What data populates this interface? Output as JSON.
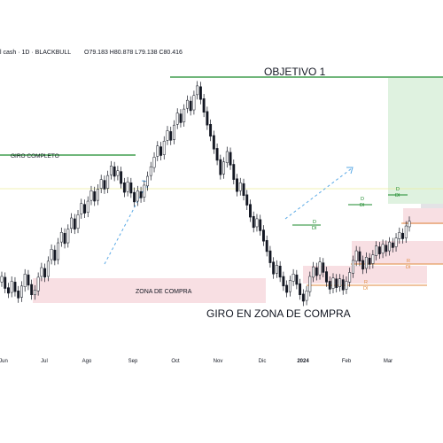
{
  "header": {
    "symbol_line": "l cash · 1D · BLACKBULL",
    "ohlc": "O79.183 H80.878 L79.138 C80.416"
  },
  "colors": {
    "up_candle": "#26a69a",
    "down_candle": "#131722",
    "target_line": "#1b8a2b",
    "target_zone": "#dff2e0",
    "buy_zone": "#f8dfe3",
    "buy_zone_border": "#e9b6bf",
    "support_line": "#e08a3c",
    "trend_arrow": "#5aa9e6",
    "candle_body": "#131722"
  },
  "chart_data": {
    "type": "candlestick",
    "title": "",
    "xlabel": "",
    "ylabel": "",
    "x_ticks": [
      "Jun",
      "Jul",
      "Ago",
      "Sep",
      "Oct",
      "Nov",
      "Dic",
      "2024",
      "Feb",
      "Mar"
    ],
    "grid": false,
    "annotations": {
      "target_label": "OBJETIVO 1",
      "turn_label": "GIRO COMPLETO",
      "buy_zone_label": "ZONA DE COMPRA",
      "turn_in_zone_label": "GIRO EN ZONA DE COMPRA",
      "marker_d": "D",
      "marker_di": "DI",
      "marker_r": "R"
    },
    "series": [
      {
        "values": [
          [
            71.4,
            72.1
          ],
          [
            72.0,
            70.6
          ],
          [
            70.7,
            70.0
          ],
          [
            70.1,
            71.5
          ],
          [
            71.4,
            70.2
          ],
          [
            70.3,
            69.4
          ],
          [
            69.5,
            70.9
          ],
          [
            70.8,
            72.4
          ],
          [
            72.3,
            71.0
          ],
          [
            71.1,
            69.8
          ],
          [
            69.8,
            70.4
          ],
          [
            70.3,
            72.0
          ],
          [
            72.1,
            73.2
          ],
          [
            73.1,
            72.0
          ],
          [
            72.1,
            74.0
          ],
          [
            74.2,
            75.5
          ],
          [
            75.4,
            74.1
          ],
          [
            74.2,
            76.3
          ],
          [
            76.4,
            77.6
          ],
          [
            77.5,
            76.2
          ],
          [
            76.3,
            78.0
          ],
          [
            78.1,
            79.4
          ],
          [
            79.3,
            78.0
          ],
          [
            78.1,
            79.8
          ],
          [
            79.9,
            81.2
          ],
          [
            81.1,
            80.0
          ],
          [
            80.1,
            81.5
          ],
          [
            81.6,
            82.8
          ],
          [
            82.7,
            81.5
          ],
          [
            81.6,
            83.0
          ],
          [
            83.1,
            84.2
          ],
          [
            84.1,
            83.0
          ],
          [
            83.1,
            84.7
          ],
          [
            84.8,
            85.9
          ],
          [
            85.8,
            84.6
          ],
          [
            84.7,
            85.3
          ],
          [
            85.2,
            83.7
          ],
          [
            83.8,
            82.6
          ],
          [
            82.7,
            83.9
          ],
          [
            83.8,
            82.5
          ],
          [
            82.6,
            81.4
          ],
          [
            81.5,
            82.8
          ],
          [
            82.7,
            81.9
          ],
          [
            82.0,
            83.5
          ],
          [
            83.4,
            84.6
          ],
          [
            84.7,
            85.8
          ],
          [
            85.7,
            87.0
          ],
          [
            87.1,
            88.4
          ],
          [
            88.3,
            87.2
          ],
          [
            87.3,
            89.0
          ],
          [
            89.1,
            90.3
          ],
          [
            90.2,
            89.1
          ],
          [
            89.2,
            91.0
          ],
          [
            91.1,
            92.5
          ],
          [
            92.4,
            91.3
          ],
          [
            91.4,
            93.0
          ],
          [
            93.1,
            94.1
          ],
          [
            94.0,
            92.8
          ],
          [
            92.9,
            94.7
          ],
          [
            94.8,
            95.9
          ],
          [
            95.8,
            94.2
          ],
          [
            94.3,
            92.6
          ],
          [
            92.7,
            91.0
          ],
          [
            91.1,
            89.6
          ],
          [
            89.7,
            88.0
          ],
          [
            88.1,
            86.6
          ],
          [
            86.7,
            84.8
          ],
          [
            84.9,
            86.4
          ],
          [
            86.3,
            87.7
          ],
          [
            87.6,
            86.0
          ],
          [
            86.1,
            84.2
          ],
          [
            84.3,
            82.7
          ],
          [
            82.8,
            83.8
          ],
          [
            83.7,
            82.2
          ],
          [
            82.3,
            81.0
          ],
          [
            81.1,
            79.5
          ],
          [
            79.6,
            78.2
          ],
          [
            78.3,
            79.3
          ],
          [
            79.2,
            77.8
          ],
          [
            77.9,
            76.5
          ],
          [
            76.6,
            75.2
          ],
          [
            75.3,
            73.8
          ],
          [
            73.9,
            72.4
          ],
          [
            72.5,
            73.5
          ],
          [
            73.4,
            72.0
          ],
          [
            72.1,
            70.9
          ],
          [
            71.0,
            70.1
          ],
          [
            70.2,
            71.6
          ],
          [
            71.5,
            72.4
          ],
          [
            72.3,
            71.1
          ],
          [
            71.2,
            69.8
          ],
          [
            69.9,
            69.0
          ],
          [
            69.1,
            70.3
          ],
          [
            70.2,
            72.1
          ],
          [
            72.0,
            73.3
          ],
          [
            73.2,
            72.2
          ],
          [
            72.3,
            73.9
          ],
          [
            73.8,
            72.6
          ],
          [
            72.7,
            71.4
          ],
          [
            71.5,
            70.5
          ],
          [
            70.6,
            71.9
          ],
          [
            71.8,
            70.7
          ],
          [
            70.8,
            71.8
          ],
          [
            71.7,
            70.4
          ],
          [
            70.5,
            71.5
          ],
          [
            71.4,
            72.6
          ],
          [
            72.5,
            74.1
          ],
          [
            74.0,
            75.3
          ],
          [
            75.2,
            74.0
          ],
          [
            74.1,
            73.0
          ],
          [
            73.1,
            74.5
          ],
          [
            74.4,
            73.6
          ],
          [
            73.7,
            74.8
          ],
          [
            74.7,
            75.9
          ],
          [
            75.8,
            74.9
          ],
          [
            75.0,
            76.1
          ],
          [
            76.0,
            75.2
          ],
          [
            75.3,
            76.4
          ],
          [
            76.3,
            75.7
          ],
          [
            75.8,
            76.9
          ],
          [
            76.8,
            77.6
          ],
          [
            77.5,
            76.8
          ],
          [
            76.9,
            78.4
          ],
          [
            78.3,
            79.0
          ]
        ]
      }
    ]
  }
}
